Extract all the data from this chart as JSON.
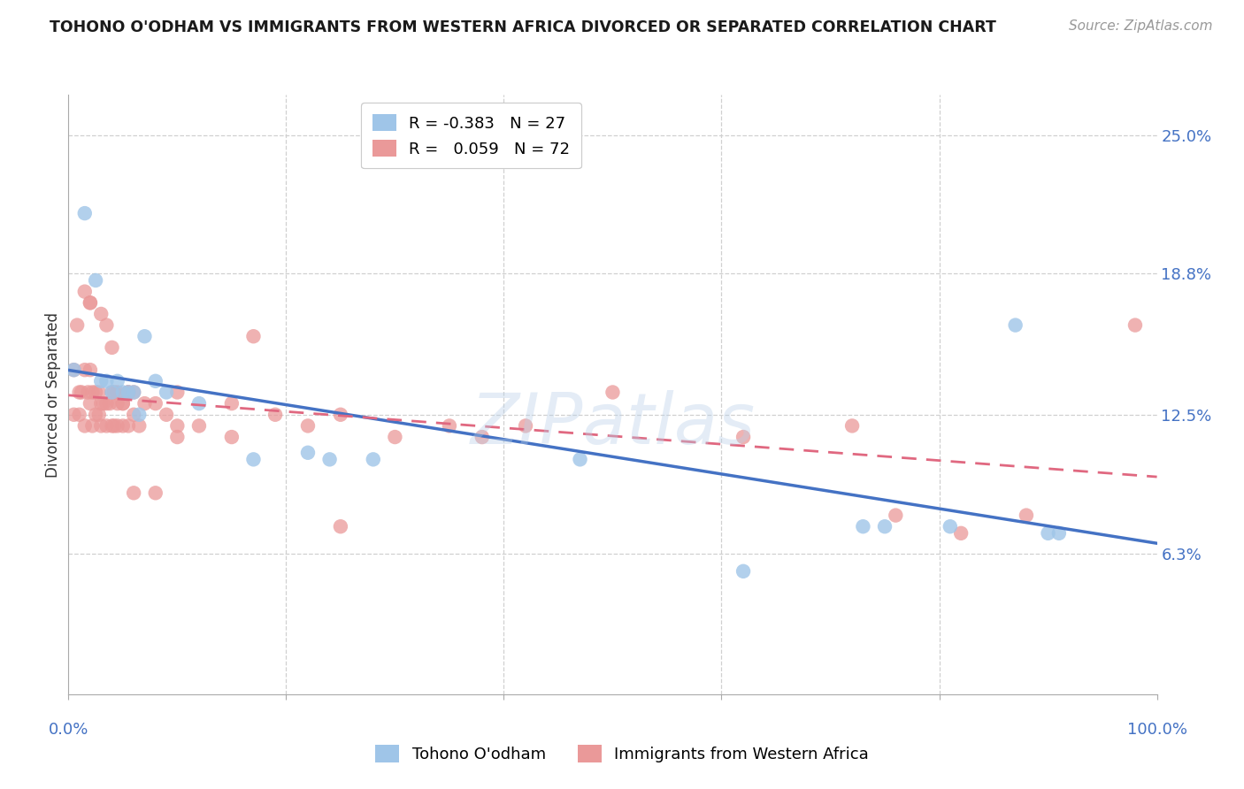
{
  "title": "TOHONO O'ODHAM VS IMMIGRANTS FROM WESTERN AFRICA DIVORCED OR SEPARATED CORRELATION CHART",
  "source": "Source: ZipAtlas.com",
  "ylabel": "Divorced or Separated",
  "ytick_labels": [
    "6.3%",
    "12.5%",
    "18.8%",
    "25.0%"
  ],
  "ytick_values": [
    0.063,
    0.125,
    0.188,
    0.25
  ],
  "legend_label1": "Tohono O'odham",
  "legend_label2": "Immigrants from Western Africa",
  "R1": -0.383,
  "N1": 27,
  "R2": 0.059,
  "N2": 72,
  "color_blue": "#9fc5e8",
  "color_pink": "#ea9999",
  "color_blue_line": "#4472c4",
  "color_pink_line": "#e06880",
  "color_axis_label": "#4472c4",
  "watermark": "ZIPatlas",
  "blue_x": [
    0.005,
    0.015,
    0.025,
    0.03,
    0.035,
    0.04,
    0.045,
    0.05,
    0.055,
    0.06,
    0.065,
    0.07,
    0.08,
    0.09,
    0.12,
    0.17,
    0.22,
    0.24,
    0.28,
    0.62,
    0.75,
    0.81,
    0.87,
    0.73,
    0.91,
    0.9,
    0.47
  ],
  "blue_y": [
    0.145,
    0.215,
    0.185,
    0.14,
    0.14,
    0.135,
    0.14,
    0.135,
    0.135,
    0.135,
    0.125,
    0.16,
    0.14,
    0.135,
    0.13,
    0.105,
    0.108,
    0.105,
    0.105,
    0.055,
    0.075,
    0.075,
    0.165,
    0.075,
    0.072,
    0.072,
    0.105
  ],
  "pink_x": [
    0.005,
    0.005,
    0.008,
    0.01,
    0.01,
    0.012,
    0.015,
    0.015,
    0.018,
    0.02,
    0.02,
    0.022,
    0.022,
    0.025,
    0.025,
    0.028,
    0.028,
    0.03,
    0.03,
    0.032,
    0.035,
    0.035,
    0.038,
    0.04,
    0.04,
    0.042,
    0.042,
    0.045,
    0.045,
    0.05,
    0.05,
    0.055,
    0.055,
    0.06,
    0.06,
    0.065,
    0.07,
    0.08,
    0.09,
    0.1,
    0.1,
    0.12,
    0.15,
    0.17,
    0.19,
    0.22,
    0.25,
    0.3,
    0.35,
    0.38,
    0.42,
    0.5,
    0.62,
    0.72,
    0.76,
    0.82,
    0.88,
    0.98,
    0.015,
    0.02,
    0.02,
    0.03,
    0.035,
    0.04,
    0.045,
    0.05,
    0.055,
    0.06,
    0.08,
    0.1,
    0.15,
    0.25
  ],
  "pink_y": [
    0.145,
    0.125,
    0.165,
    0.135,
    0.125,
    0.135,
    0.145,
    0.12,
    0.135,
    0.145,
    0.13,
    0.135,
    0.12,
    0.135,
    0.125,
    0.135,
    0.125,
    0.13,
    0.12,
    0.13,
    0.13,
    0.12,
    0.13,
    0.12,
    0.135,
    0.135,
    0.12,
    0.13,
    0.12,
    0.13,
    0.12,
    0.135,
    0.12,
    0.135,
    0.125,
    0.12,
    0.13,
    0.13,
    0.125,
    0.135,
    0.12,
    0.12,
    0.115,
    0.16,
    0.125,
    0.12,
    0.125,
    0.115,
    0.12,
    0.115,
    0.12,
    0.135,
    0.115,
    0.12,
    0.08,
    0.072,
    0.08,
    0.165,
    0.18,
    0.175,
    0.175,
    0.17,
    0.165,
    0.155,
    0.135,
    0.13,
    0.135,
    0.09,
    0.09,
    0.115,
    0.13,
    0.075
  ]
}
